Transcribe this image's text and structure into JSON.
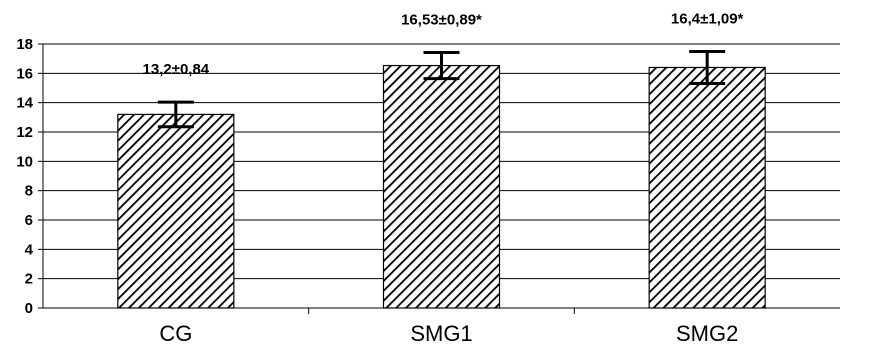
{
  "chart_data": {
    "type": "bar",
    "categories": [
      "CG",
      "SMG1",
      "SMG2"
    ],
    "values": [
      13.2,
      16.53,
      16.4
    ],
    "errors": [
      0.84,
      0.89,
      1.09
    ],
    "data_labels": [
      "13,2±0,84",
      "16,53±0,89*",
      "16,4±1,09*"
    ],
    "title": "",
    "xlabel": "",
    "ylabel": "",
    "ylim": [
      0,
      18
    ],
    "yticks": [
      0,
      2,
      4,
      6,
      8,
      10,
      12,
      14,
      16,
      18
    ],
    "grid": true,
    "legend": "none",
    "bar_fill": "diagonal-hatch",
    "colors": {
      "bar_stroke": "#000000",
      "hatch": "#000000",
      "background": "#ffffff",
      "grid": "#000000"
    }
  }
}
